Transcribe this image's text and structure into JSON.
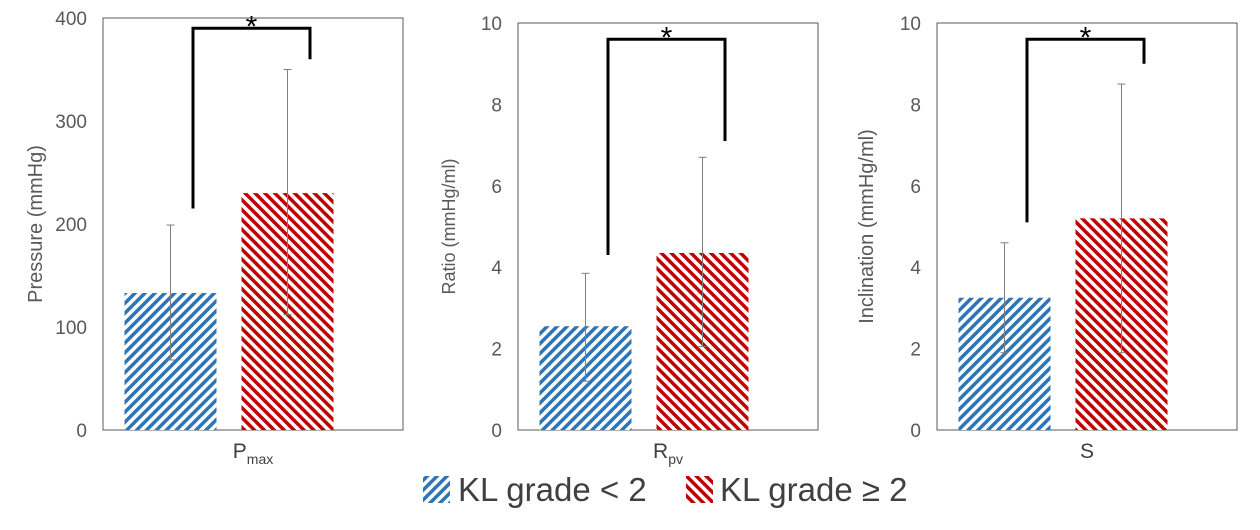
{
  "colors": {
    "series_1": "#2e75b6",
    "series_2": "#c00000"
  },
  "legend": [
    {
      "label": "KL grade < 2"
    },
    {
      "label": "KL grade ≥ 2"
    }
  ],
  "chart_data": [
    {
      "type": "bar",
      "category": {
        "main": "P",
        "sub": "max"
      },
      "ylabel": "Pressure (mmHg)",
      "ylim": [
        0,
        400
      ],
      "yticks": [
        0,
        100,
        200,
        300,
        400
      ],
      "grid": false,
      "series": [
        {
          "name": "KL grade < 2",
          "value": 133,
          "error_low": 68,
          "error_high": 199
        },
        {
          "name": "KL grade ≥ 2",
          "value": 230,
          "error_low": 112,
          "error_high": 350
        }
      ],
      "significance": {
        "label": "*",
        "left_end": 215,
        "right_end": 360,
        "top": 390
      }
    },
    {
      "type": "bar",
      "category": {
        "main": "R",
        "sub": "pv"
      },
      "ylabel": "Ratio (mmHg/ml)",
      "ylim": [
        0,
        10
      ],
      "yticks": [
        0,
        2,
        4,
        6,
        8,
        10
      ],
      "grid": false,
      "series": [
        {
          "name": "KL grade < 2",
          "value": 2.55,
          "error_low": 1.2,
          "error_high": 3.85
        },
        {
          "name": "KL grade ≥ 2",
          "value": 4.35,
          "error_low": 2.05,
          "error_high": 6.7
        }
      ],
      "significance": {
        "label": "*",
        "left_end": 4.3,
        "right_end": 7.1,
        "top": 9.6
      }
    },
    {
      "type": "bar",
      "category": {
        "main": "S",
        "sub": ""
      },
      "ylabel": "Inclination (mmHg/ml)",
      "ylim": [
        0,
        10
      ],
      "yticks": [
        0,
        2,
        4,
        6,
        8,
        10
      ],
      "grid": false,
      "series": [
        {
          "name": "KL grade < 2",
          "value": 3.25,
          "error_low": 1.9,
          "error_high": 4.6
        },
        {
          "name": "KL grade ≥ 2",
          "value": 5.2,
          "error_low": 1.9,
          "error_high": 8.5
        }
      ],
      "significance": {
        "label": "*",
        "left_end": 5.1,
        "right_end": 9.0,
        "top": 9.6
      }
    }
  ]
}
